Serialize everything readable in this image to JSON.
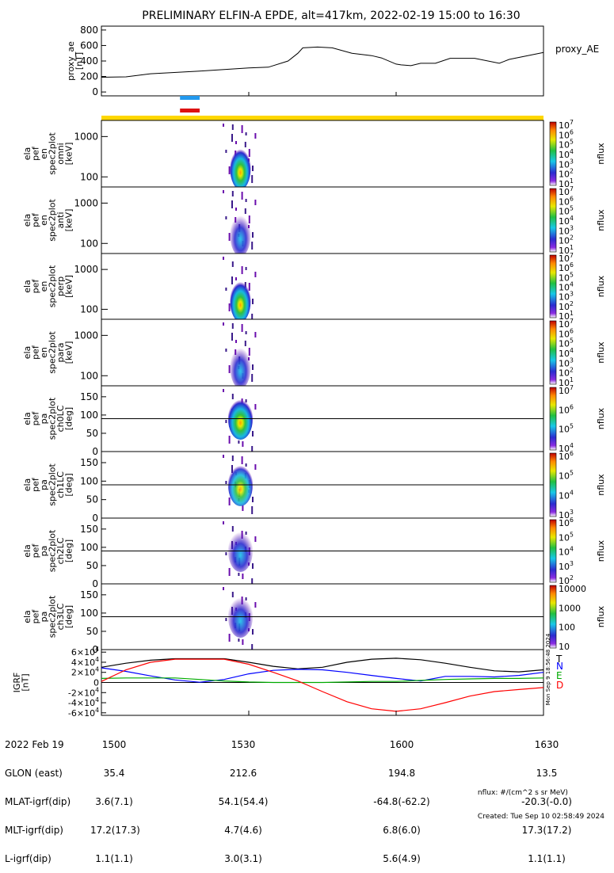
{
  "title": "PRELIMINARY ELFIN-A EPDE, alt=417km, 2022-02-19 15:00 to 16:30",
  "chart_data": {
    "type": "line",
    "time_range": [
      "15:00",
      "16:30"
    ],
    "proxy_ae": {
      "ylabel": [
        "proxy_ae",
        "[nT]"
      ],
      "yticks": [
        "0",
        "200",
        "400",
        "600",
        "800"
      ],
      "ylim": [
        -50,
        850
      ],
      "legend": "proxy_AE",
      "t": [
        0,
        5,
        10,
        20,
        30,
        34,
        38,
        40,
        41,
        44,
        47,
        51,
        55,
        57,
        60,
        61,
        63,
        65,
        68,
        71,
        73,
        76,
        81,
        83,
        90
      ],
      "values": [
        190,
        195,
        235,
        270,
        310,
        320,
        400,
        500,
        570,
        580,
        570,
        500,
        470,
        440,
        360,
        350,
        340,
        370,
        370,
        435,
        435,
        435,
        370,
        420,
        510
      ]
    },
    "sectors": {
      "blue_bar": {
        "t": [
          16,
          20
        ],
        "color": "#2299ee"
      },
      "red_bar": {
        "t": [
          16,
          20
        ],
        "color": "#dd1111"
      },
      "yellow_bar": {
        "t": [
          0,
          90
        ],
        "color": "#ffd700"
      }
    },
    "spectrogram_panels": [
      {
        "ylabel": [
          "ela",
          "pef",
          "en",
          "spec2plot",
          "omni",
          "[keV]"
        ],
        "yticks": [
          "100",
          "1000"
        ],
        "cbar_ticks": [
          "10^1",
          "10^2",
          "10^3",
          "10^4",
          "10^5",
          "10^6",
          "10^7"
        ],
        "cbar_label": "nflux"
      },
      {
        "ylabel": [
          "ela",
          "pef",
          "en",
          "spec2plot",
          "anti",
          "[keV]"
        ],
        "yticks": [
          "100",
          "1000"
        ],
        "cbar_ticks": [
          "10^1",
          "10^2",
          "10^3",
          "10^4",
          "10^5",
          "10^6",
          "10^7"
        ],
        "cbar_label": "nflux"
      },
      {
        "ylabel": [
          "ela",
          "pef",
          "en",
          "spec2plot",
          "perp",
          "[keV]"
        ],
        "yticks": [
          "100",
          "1000"
        ],
        "cbar_ticks": [
          "10^1",
          "10^2",
          "10^3",
          "10^4",
          "10^5",
          "10^6",
          "10^7"
        ],
        "cbar_label": "nflux"
      },
      {
        "ylabel": [
          "ela",
          "pef",
          "en",
          "spec2plot",
          "para",
          "[keV]"
        ],
        "yticks": [
          "100",
          "1000"
        ],
        "cbar_ticks": [
          "10^1",
          "10^2",
          "10^3",
          "10^4",
          "10^5",
          "10^6",
          "10^7"
        ],
        "cbar_label": "nflux"
      },
      {
        "ylabel": [
          "ela",
          "pef",
          "pa",
          "spec2plot",
          "ch0LC",
          "[deg]"
        ],
        "yticks": [
          "0",
          "50",
          "100",
          "150"
        ],
        "cbar_ticks": [
          "10^4",
          "10^5",
          "10^6",
          "10^7"
        ],
        "cbar_label": "nflux"
      },
      {
        "ylabel": [
          "ela",
          "pef",
          "pa",
          "spec2plot",
          "ch1LC",
          "[deg]"
        ],
        "yticks": [
          "0",
          "50",
          "100",
          "150"
        ],
        "cbar_ticks": [
          "10^3",
          "10^4",
          "10^5",
          "10^6"
        ],
        "cbar_label": "nflux"
      },
      {
        "ylabel": [
          "ela",
          "pef",
          "pa",
          "spec2plot",
          "ch2LC",
          "[deg]"
        ],
        "yticks": [
          "0",
          "50",
          "100",
          "150"
        ],
        "cbar_ticks": [
          "10^2",
          "10^3",
          "10^4",
          "10^5",
          "10^6"
        ],
        "cbar_label": "nflux"
      },
      {
        "ylabel": [
          "ela",
          "pef",
          "pa",
          "spec2plot",
          "ch3LC",
          "[deg]"
        ],
        "yticks": [
          "0",
          "50",
          "100",
          "150"
        ],
        "cbar_ticks": [
          "10",
          "100",
          "1000",
          "10000"
        ],
        "cbar_label": "nflux"
      }
    ],
    "igrf": {
      "ylabel": [
        "IGRF",
        "[nT]"
      ],
      "yticks": [
        "-6×10^4",
        "-4×10^4",
        "-2×10^4",
        "0",
        "2×10^4",
        "4×10^4",
        "6×10^4"
      ],
      "ylim": [
        -65000,
        65000
      ],
      "stamp": "Mon Sep 9 18:56:48 2024",
      "t": [
        0,
        5,
        10,
        15,
        20,
        25,
        30,
        35,
        40,
        45,
        50,
        55,
        60,
        65,
        70,
        75,
        80,
        85,
        90
      ],
      "series": [
        {
          "name": "T",
          "color": "#000000",
          "values": [
            30000,
            38000,
            44000,
            47000,
            47000,
            47000,
            40000,
            32000,
            27000,
            30000,
            40000,
            46000,
            48000,
            45000,
            38000,
            30000,
            23000,
            21000,
            25000
          ]
        },
        {
          "name": "N",
          "color": "#0000ff",
          "values": [
            29000,
            22000,
            13000,
            5000,
            500,
            6000,
            17000,
            24000,
            26000,
            25000,
            20000,
            14000,
            8000,
            3000,
            12000,
            12000,
            11000,
            14000,
            20000
          ]
        },
        {
          "name": "E",
          "color": "#00aa00",
          "values": [
            8000,
            9000,
            9000,
            9000,
            6000,
            3000,
            1000,
            0,
            0,
            0,
            1000,
            2000,
            2000,
            4000,
            6000,
            7000,
            8000,
            8000,
            9000
          ]
        },
        {
          "name": "D",
          "color": "#ff0000",
          "values": [
            2000,
            25000,
            40000,
            46000,
            46000,
            46000,
            36000,
            20000,
            3000,
            -18000,
            -38000,
            -52000,
            -57000,
            -52000,
            -40000,
            -27000,
            -18000,
            -14000,
            -10000
          ]
        }
      ]
    }
  },
  "footer": {
    "labels": [
      "2022 Feb 19",
      "GLON (east)",
      "MLAT-igrf(dip)",
      "MLT-igrf(dip)",
      "L-igrf(dip)"
    ],
    "time_ticks": [
      "1500",
      "1530",
      "1600",
      "1630"
    ],
    "first_col": [
      "1500",
      "35.4",
      "3.6(7.1)",
      "17.2(17.3)",
      "1.1(1.1)"
    ],
    "col_1530": [
      "1530",
      "212.6",
      "54.1(54.4)",
      "4.7(4.6)",
      "3.0(3.1)"
    ],
    "col_1600": [
      "1600",
      "194.8",
      "-64.8(-62.2)",
      "6.8(6.0)",
      "5.6(4.9)"
    ],
    "col_1630": [
      "1630",
      "13.5",
      "-20.3(-0.0)",
      "17.3(17.2)",
      "1.1(1.1)"
    ],
    "nflux_note": "nflux: #/(cm^2 s sr MeV)",
    "created": "Created: Tue Sep 10 02:58:49 2024"
  }
}
